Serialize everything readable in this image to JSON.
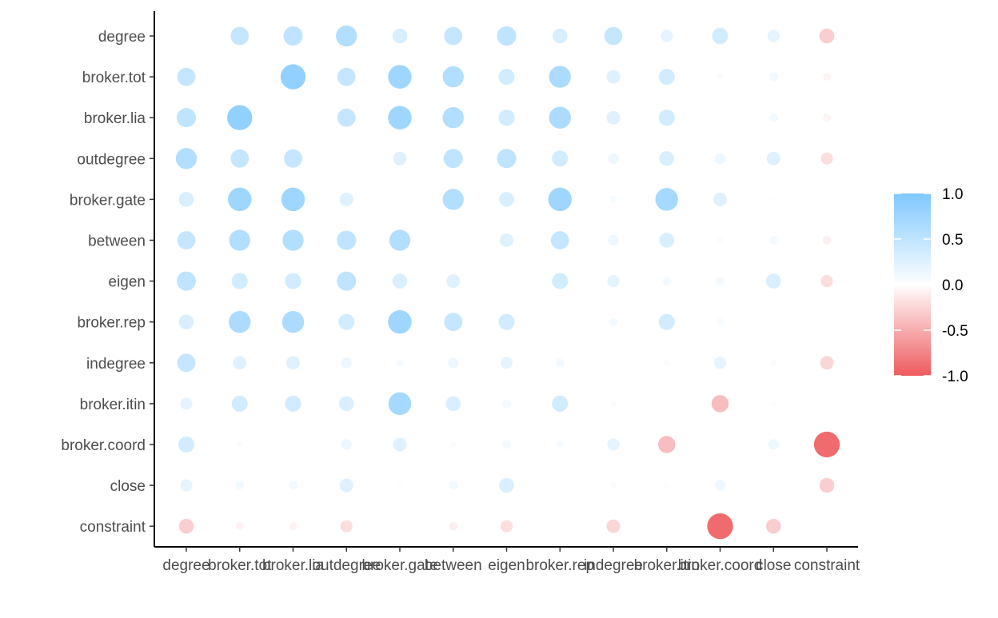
{
  "chart_data": {
    "type": "scatter",
    "title": "",
    "xlabel": "",
    "ylabel": "",
    "variables": [
      "degree",
      "broker.tot",
      "broker.lia",
      "outdegree",
      "broker.gate",
      "between",
      "eigen",
      "broker.rep",
      "indegree",
      "broker.itin",
      "broker.coord",
      "close",
      "constraint"
    ],
    "x_tick_labels": [
      "degree",
      "broker.tot",
      "broker.lia",
      "outdegree",
      "broker.gate",
      "between",
      "eigen",
      "broker.rep",
      "indegree",
      "broker.itin",
      "broker.coord",
      "close",
      "constraint"
    ],
    "y_tick_labels": [
      "degree",
      "broker.tot",
      "broker.lia",
      "outdegree",
      "broker.gate",
      "between",
      "eigen",
      "broker.rep",
      "indegree",
      "broker.itin",
      "broker.coord",
      "close",
      "constraint"
    ],
    "color_scale": {
      "range": [
        -1.0,
        1.0
      ],
      "ticks": [
        1.0,
        0.5,
        0.0,
        -0.5,
        -1.0
      ],
      "tick_labels": [
        "1.0",
        "0.5",
        "0.0",
        "-0.5",
        "-1.0"
      ],
      "high_color": "#7fc8ff",
      "mid_color": "#ffffff",
      "low_color": "#ee5a5e"
    },
    "grid": false,
    "legend_position": "right",
    "matrix": [
      [
        null,
        0.45,
        0.5,
        0.6,
        0.3,
        0.45,
        0.5,
        0.3,
        0.45,
        0.2,
        0.35,
        0.2,
        -0.3
      ],
      [
        0.45,
        null,
        0.85,
        0.45,
        0.75,
        0.6,
        0.35,
        0.65,
        0.25,
        0.35,
        0.05,
        0.1,
        -0.08
      ],
      [
        0.5,
        0.85,
        null,
        0.45,
        0.75,
        0.6,
        0.35,
        0.65,
        0.25,
        0.35,
        0.02,
        0.1,
        -0.08
      ],
      [
        0.6,
        0.45,
        0.45,
        null,
        0.25,
        0.5,
        0.5,
        0.35,
        0.15,
        0.3,
        0.15,
        0.25,
        -0.2
      ],
      [
        0.3,
        0.75,
        0.75,
        0.25,
        null,
        0.6,
        0.3,
        0.75,
        0.08,
        0.7,
        0.25,
        0.03,
        0.01
      ],
      [
        0.45,
        0.6,
        0.6,
        0.5,
        0.6,
        null,
        0.25,
        0.45,
        0.15,
        0.3,
        0.05,
        0.1,
        -0.1
      ],
      [
        0.5,
        0.35,
        0.35,
        0.5,
        0.3,
        0.25,
        null,
        0.35,
        0.2,
        0.1,
        0.1,
        0.3,
        -0.2
      ],
      [
        0.3,
        0.65,
        0.65,
        0.35,
        0.75,
        0.45,
        0.35,
        null,
        0.1,
        0.35,
        0.08,
        0.02,
        0.01
      ],
      [
        0.45,
        0.25,
        0.25,
        0.15,
        0.08,
        0.15,
        0.2,
        0.1,
        null,
        0.05,
        0.2,
        0.05,
        -0.25
      ],
      [
        0.2,
        0.35,
        0.35,
        0.3,
        0.7,
        0.3,
        0.1,
        0.35,
        0.05,
        null,
        -0.4,
        0.03,
        0.01
      ],
      [
        0.35,
        0.05,
        0.02,
        0.15,
        0.25,
        0.05,
        0.1,
        0.08,
        0.2,
        -0.4,
        null,
        0.15,
        -0.9
      ],
      [
        0.2,
        0.1,
        0.1,
        0.25,
        0.03,
        0.1,
        0.3,
        0.02,
        0.05,
        0.03,
        0.15,
        null,
        -0.3
      ],
      [
        -0.3,
        -0.08,
        -0.08,
        -0.2,
        0.01,
        -0.1,
        -0.2,
        0.01,
        -0.25,
        0.01,
        -0.9,
        -0.3,
        null
      ]
    ]
  }
}
